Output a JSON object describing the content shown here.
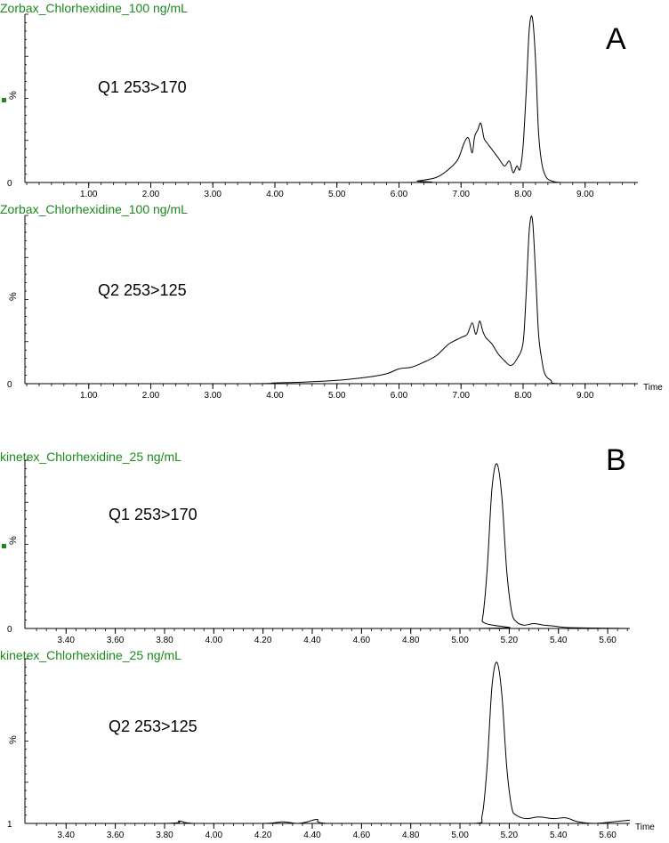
{
  "figure": {
    "panel_letters": {
      "A": "A",
      "B": "B"
    },
    "x_axis_name": "Time",
    "colors": {
      "title": "#1a8a1a",
      "trace": "#000000",
      "marker": "#1a8a1a"
    }
  },
  "chart_data": [
    {
      "type": "line",
      "title": "Zorbax_Chlorhexidine_100 ng/mL",
      "annotation": "Q1 253>170",
      "ylabel": "%",
      "y_tick_labels": [
        "0"
      ],
      "xlim": [
        0,
        9.85
      ],
      "ylim": [
        0,
        100
      ],
      "x_ticks": [
        1,
        2,
        3,
        4,
        5,
        6,
        7,
        8,
        9
      ],
      "x_tick_labels": [
        "1.00",
        "2.00",
        "3.00",
        "4.00",
        "5.00",
        "6.00",
        "7.00",
        "8.00",
        "9.00"
      ],
      "show_time_label": false,
      "show_marker": true,
      "x": [
        0,
        6.0,
        6.3,
        6.6,
        6.8,
        6.95,
        7.05,
        7.12,
        7.18,
        7.22,
        7.27,
        7.32,
        7.37,
        7.42,
        7.5,
        7.6,
        7.7,
        7.78,
        7.84,
        7.9,
        7.95,
        8.0,
        8.05,
        8.1,
        8.15,
        8.2,
        8.25,
        8.3,
        8.35,
        8.4,
        8.5,
        8.6,
        8.7,
        9.85
      ],
      "series": [
        {
          "values": [
            0,
            0,
            1,
            3,
            8,
            14,
            24,
            27,
            18,
            28,
            32,
            36,
            27,
            24,
            20,
            15,
            10,
            13,
            6,
            10,
            8,
            22,
            55,
            93,
            100,
            75,
            30,
            12,
            5,
            2,
            0.5,
            0,
            0,
            0
          ]
        }
      ]
    },
    {
      "type": "line",
      "title": "Zorbax_Chlorhexidine_100  ng/mL",
      "annotation": "Q2 253>125",
      "ylabel": "%",
      "y_tick_labels": [
        "0"
      ],
      "xlim": [
        0,
        9.85
      ],
      "ylim": [
        0,
        100
      ],
      "x_ticks": [
        1,
        2,
        3,
        4,
        5,
        6,
        7,
        8,
        9
      ],
      "x_tick_labels": [
        "1.00",
        "2.00",
        "3.00",
        "4.00",
        "5.00",
        "6.00",
        "7.00",
        "8.00",
        "9.00"
      ],
      "show_time_label": true,
      "show_marker": false,
      "x": [
        0,
        3.5,
        4.0,
        4.5,
        5.0,
        5.5,
        5.8,
        6.0,
        6.2,
        6.4,
        6.6,
        6.8,
        7.0,
        7.1,
        7.18,
        7.24,
        7.3,
        7.35,
        7.4,
        7.5,
        7.6,
        7.7,
        7.8,
        7.9,
        8.0,
        8.05,
        8.1,
        8.15,
        8.2,
        8.25,
        8.3,
        8.35,
        8.45,
        8.6,
        9.85
      ],
      "series": [
        {
          "values": [
            0,
            0,
            0.5,
            1,
            2,
            4,
            6,
            9,
            10,
            13,
            17,
            24,
            28,
            30,
            37,
            30,
            38,
            32,
            28,
            24,
            18,
            14,
            11,
            15,
            25,
            55,
            93,
            100,
            68,
            30,
            15,
            6,
            2,
            0,
            0
          ]
        }
      ]
    },
    {
      "type": "line",
      "title": "kinetex_Chlorhexidine_25 ng/mL",
      "annotation": "Q1 253>170",
      "ylabel": "%",
      "y_tick_labels": [
        "0"
      ],
      "xlim": [
        3.24,
        5.69
      ],
      "ylim": [
        0,
        100
      ],
      "x_ticks": [
        3.4,
        3.6,
        3.8,
        4.0,
        4.2,
        4.4,
        4.6,
        4.8,
        5.0,
        5.2,
        5.4,
        5.6
      ],
      "x_tick_labels": [
        "3.40",
        "3.60",
        "3.80",
        "4.00",
        "4.20",
        "4.40",
        "4.60",
        "4.80",
        "5.00",
        "5.20",
        "5.40",
        "5.60"
      ],
      "show_time_label": false,
      "show_marker": true,
      "x": [
        3.24,
        5.06,
        5.09,
        5.11,
        5.13,
        5.15,
        5.17,
        5.19,
        5.21,
        5.23,
        5.26,
        5.3,
        5.34,
        5.38,
        5.45,
        5.69
      ],
      "series": [
        {
          "values": [
            0,
            0,
            5,
            35,
            85,
            100,
            80,
            35,
            10,
            4,
            2,
            3,
            2,
            1.5,
            0.5,
            0
          ]
        }
      ]
    },
    {
      "type": "line",
      "title": "kinetex_Chlorhexidine_25 ng/mL",
      "annotation": "Q2 253>125",
      "ylabel": "%",
      "y_tick_labels": [
        "1"
      ],
      "xlim": [
        3.24,
        5.69
      ],
      "ylim": [
        0,
        100
      ],
      "x_ticks": [
        3.4,
        3.6,
        3.8,
        4.0,
        4.2,
        4.4,
        4.6,
        4.8,
        5.0,
        5.2,
        5.4,
        5.6
      ],
      "x_tick_labels": [
        "3.40",
        "3.60",
        "3.80",
        "4.00",
        "4.20",
        "4.40",
        "4.60",
        "4.80",
        "5.00",
        "5.20",
        "5.40",
        "5.60"
      ],
      "show_time_label": true,
      "show_marker": false,
      "x": [
        3.24,
        3.8,
        3.86,
        3.92,
        4.2,
        4.28,
        4.34,
        4.38,
        4.42,
        4.46,
        4.8,
        5.06,
        5.09,
        5.11,
        5.13,
        5.15,
        5.17,
        5.19,
        5.21,
        5.23,
        5.27,
        5.32,
        5.38,
        5.43,
        5.48,
        5.55,
        5.62,
        5.69
      ],
      "series": [
        {
          "values": [
            0,
            0,
            1.5,
            0,
            0,
            1,
            0,
            1,
            2.5,
            0,
            0,
            0,
            5,
            35,
            85,
            100,
            80,
            35,
            10,
            5,
            3,
            4,
            3,
            3.5,
            1,
            0,
            1,
            2
          ]
        }
      ]
    }
  ]
}
